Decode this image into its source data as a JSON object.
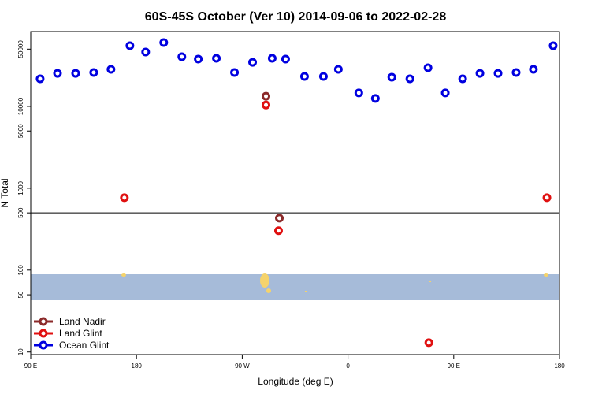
{
  "chart_data": {
    "type": "scatter",
    "title": "60S-45S October (Ver 10)   2014-09-06 to 2022-02-28",
    "xlabel": "Longitude (deg E)",
    "ylabel": "N Total",
    "log_y": true,
    "legend": "lower left",
    "reference_line": 500,
    "xlim": [
      90,
      540
    ],
    "ylim": [
      9.3,
      82000
    ],
    "xticks": [
      {
        "value": 90,
        "label": "90 E"
      },
      180,
      {
        "value": 270,
        "label": "90 W"
      },
      {
        "value": 360,
        "label": "0"
      },
      {
        "value": 450,
        "label": "90 E"
      },
      {
        "value": 540,
        "label": "180"
      }
    ],
    "yticks": [
      10,
      50,
      100,
      500,
      1000,
      5000,
      10000,
      50000
    ],
    "series": [
      {
        "name": "Land Nadir",
        "color": "#8b2a2a",
        "x": [
          290.2,
          301.6
        ],
        "values": [
          13300,
          431
        ]
      },
      {
        "name": "Land Glint",
        "color": "#e01010",
        "x": [
          169.7,
          290.2,
          300.9,
          428.8,
          529.3
        ],
        "values": [
          767,
          10400,
          303,
          13,
          767
        ]
      },
      {
        "name": "Ocean Glint",
        "color": "#0000e0",
        "x": [
          98,
          112.8,
          128.2,
          143.6,
          158.3,
          174.4,
          187.8,
          203.2,
          218.6,
          232.6,
          248,
          263.4,
          278.8,
          295.5,
          306.9,
          323,
          339.1,
          351.8,
          369.2,
          383.3,
          397.3,
          412.7,
          428.1,
          442.8,
          457.6,
          472.3,
          487.7,
          503.1,
          517.8,
          534.6
        ],
        "values": [
          21700,
          25300,
          25300,
          25900,
          28300,
          55000,
          46100,
          60100,
          40300,
          37800,
          38600,
          25900,
          34500,
          38600,
          37800,
          23200,
          23200,
          28300,
          14600,
          12500,
          22700,
          21700,
          29600,
          14600,
          21700,
          25300,
          25300,
          25900,
          28300,
          55000
        ]
      }
    ]
  }
}
